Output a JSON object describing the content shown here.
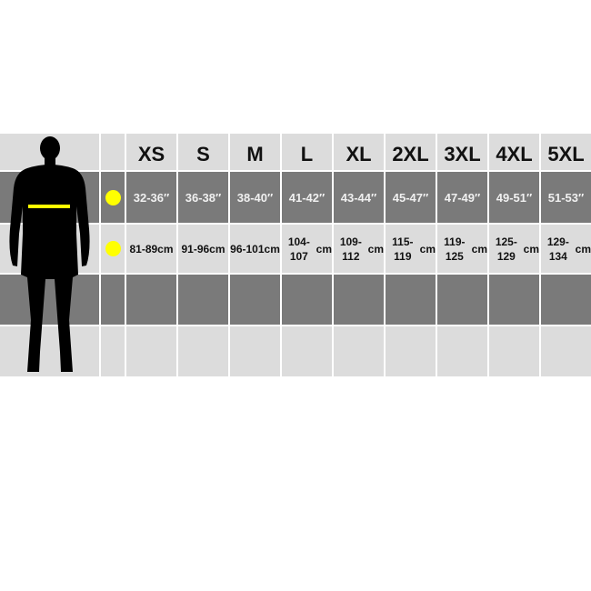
{
  "sizes": [
    "XS",
    "S",
    "M",
    "L",
    "XL",
    "2XL",
    "3XL",
    "4XL",
    "5XL"
  ],
  "chest_inches": [
    "32-36″",
    "36-38″",
    "38-40″",
    "41-42″",
    "43-44″",
    "45-47″",
    "47-49″",
    "49-51″",
    "51-53″"
  ],
  "chest_cm": [
    "81-89",
    "91-96",
    "96-101",
    "104-107",
    "109-112",
    "115-119",
    "119-125",
    "125-129",
    "129-134"
  ],
  "cm_unit": "cm",
  "colors": {
    "marker": "#ffff00",
    "dark_row": "#7a7a7a",
    "light_row": "#dcdcdc"
  },
  "icons": {
    "figure": "male-silhouette-icon",
    "marker": "yellow-dot-icon"
  }
}
